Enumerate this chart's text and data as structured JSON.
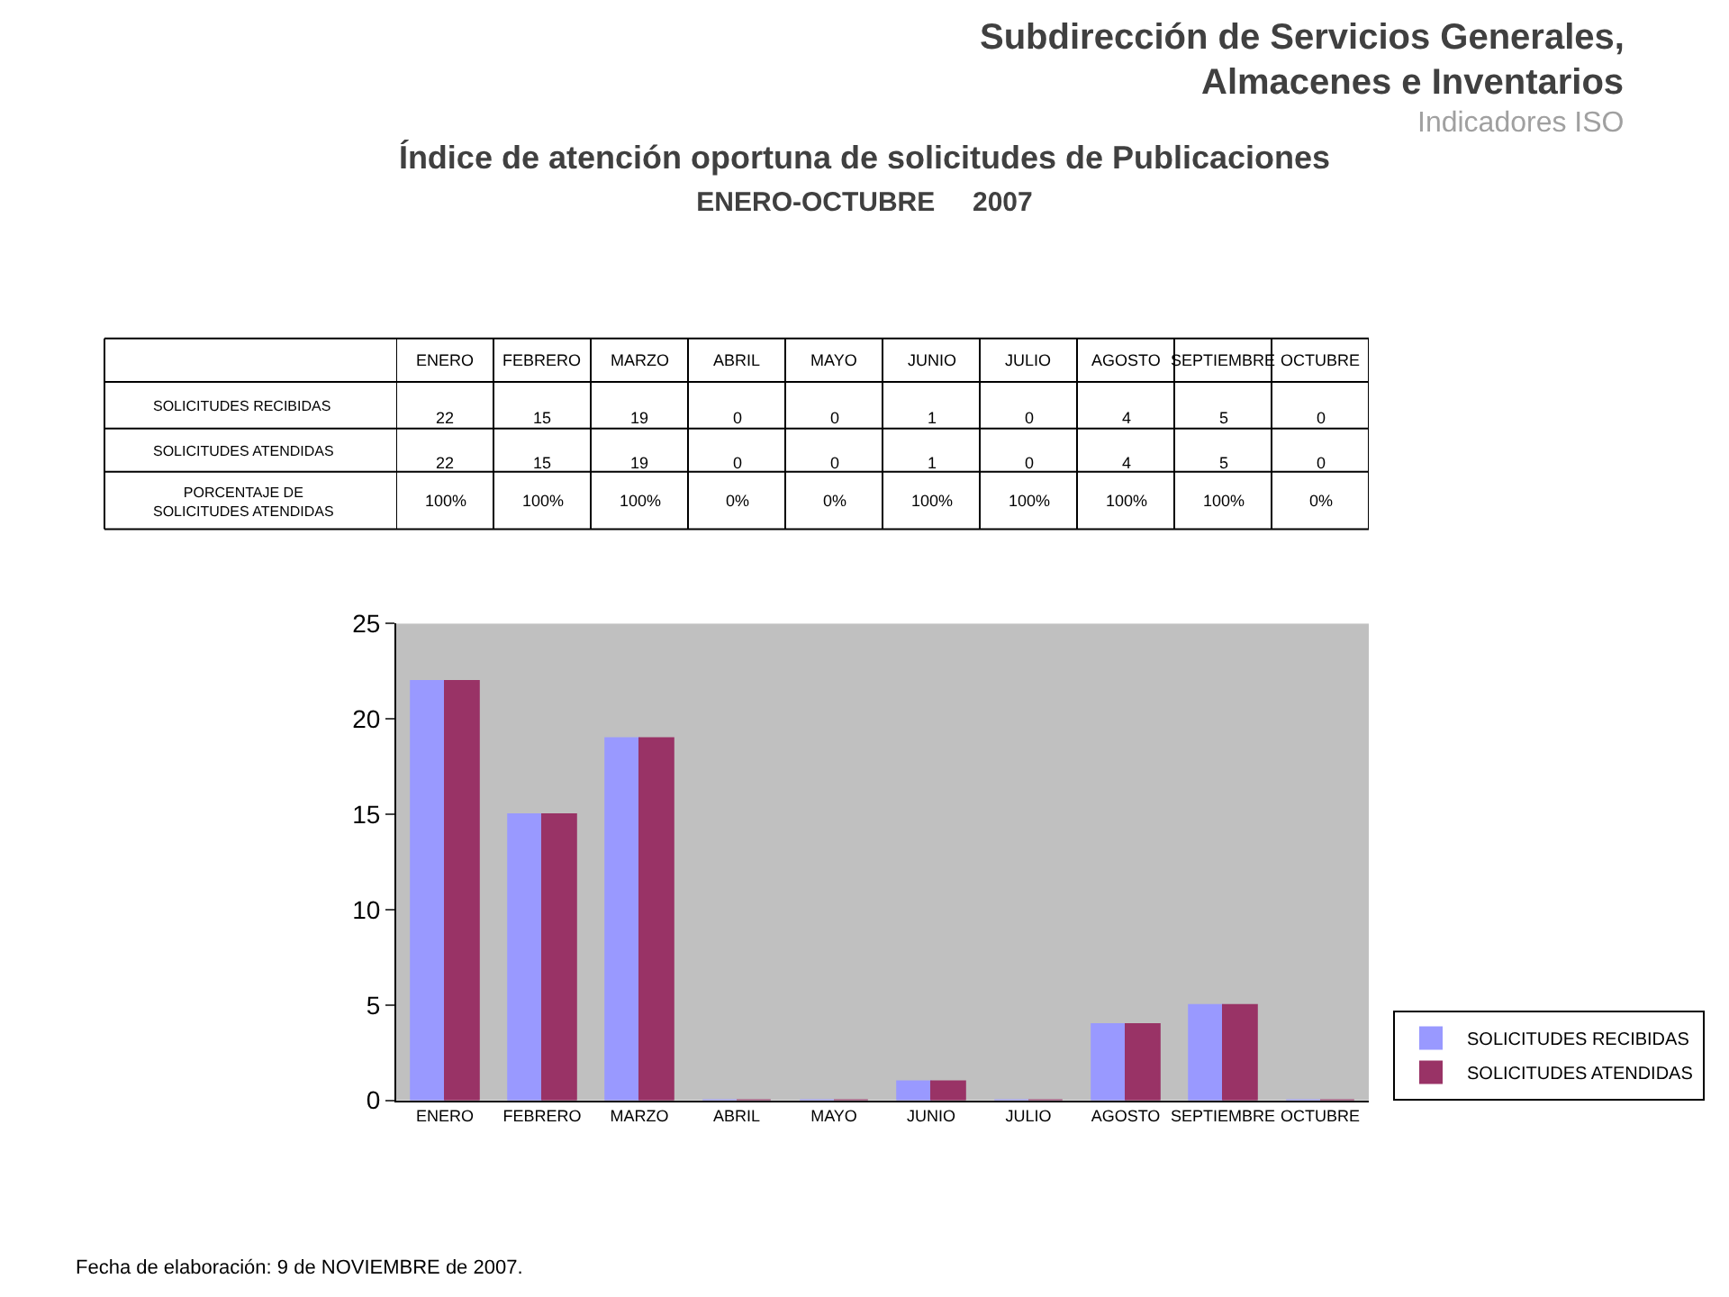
{
  "chart_data": {
    "type": "bar",
    "title": "Índice de atención oportuna de solicitudes de Publicaciones",
    "subtitle": "ENERO-OCTUBRE     2007",
    "categories": [
      "ENERO",
      "FEBRERO",
      "MARZO",
      "ABRIL",
      "MAYO",
      "JUNIO",
      "JULIO",
      "AGOSTO",
      "SEPTIEMBRE",
      "OCTUBRE"
    ],
    "series": [
      {
        "name": "SOLICITUDES RECIBIDAS",
        "color": "#9999ff",
        "values": [
          22,
          15,
          19,
          0,
          0,
          1,
          0,
          4,
          5,
          0
        ],
        "value_labels": [
          "22",
          "15",
          "19",
          "0",
          "0",
          "1",
          "0",
          "4",
          "5",
          "0"
        ]
      },
      {
        "name": "SOLICITUDES ATENDIDAS",
        "color": "#993366",
        "values": [
          22,
          15,
          19,
          0,
          0,
          1,
          0,
          4,
          5,
          0
        ],
        "value_labels": [
          "22",
          "15",
          "19",
          "0",
          "0",
          "1",
          "0",
          "4",
          "5",
          "0"
        ]
      }
    ],
    "annotations": [
      "Subdirección de Servicios Generales,",
      "Almacenes e Inventarios",
      "Indicadores ISO",
      "PORCENTAJE DE SOLICITUDES ATENDIDAS",
      "100%",
      "100%",
      "100%",
      "0%",
      "0%",
      "100%",
      "100%",
      "100%",
      "100%",
      "0%",
      "Fecha de elaboración: 9 de NOVIEMBRE de 2007."
    ],
    "ylim": [
      0,
      25
    ],
    "yticks": [
      0,
      5,
      10,
      15,
      20,
      25
    ],
    "grid": false,
    "legend": "bottom right"
  }
}
